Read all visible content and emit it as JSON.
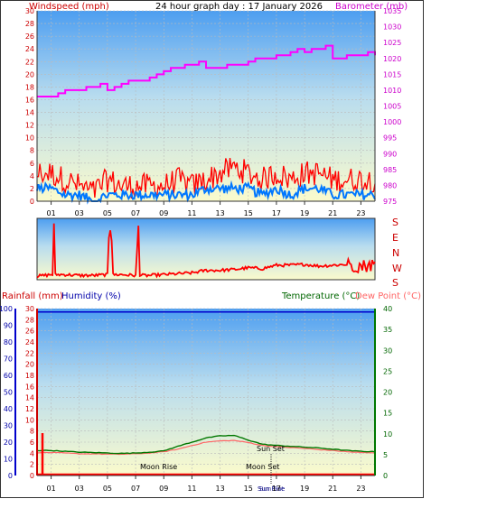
{
  "header": {
    "left": "Windspeed (mph)",
    "center": "24 hour graph day : 17 January 2026",
    "right": "Barometer (mb)"
  },
  "colors": {
    "wind_gust": "#ff0000",
    "wind_avg": "#0077ff",
    "barometer": "#ff00ff",
    "wind_dir": "#ff0000",
    "rain": "#ff0000",
    "humidity": "#0000cc",
    "temperature": "#007700",
    "dewpoint": "#ff6666",
    "grid": "#bbbbbb"
  },
  "x_ticks": [
    "01",
    "03",
    "05",
    "07",
    "09",
    "11",
    "13",
    "15",
    "17",
    "19",
    "21",
    "23"
  ],
  "chart_data": [
    {
      "type": "line",
      "name": "wind-barometer",
      "xlabel": "",
      "ylabel": "Windspeed (mph)",
      "ylabel_right": "Barometer (mb)",
      "ylim": [
        0,
        30
      ],
      "ylim_right": [
        975,
        1035
      ],
      "yticks": [
        0,
        2,
        4,
        6,
        8,
        10,
        12,
        14,
        16,
        18,
        20,
        22,
        24,
        26,
        28,
        30
      ],
      "yticks_right": [
        975,
        980,
        985,
        990,
        995,
        1000,
        1005,
        1010,
        1015,
        1020,
        1025,
        1030,
        1035
      ],
      "x_hours": [
        0,
        1,
        2,
        3,
        4,
        5,
        6,
        7,
        8,
        9,
        10,
        11,
        12,
        13,
        14,
        15,
        16,
        17,
        18,
        19,
        20,
        21,
        22,
        23,
        24
      ],
      "series": [
        {
          "name": "Barometer",
          "axis": "right",
          "values": [
            1008,
            1008,
            1010,
            1010,
            1011,
            1010,
            1012,
            1013,
            1014,
            1016,
            1017,
            1018,
            1017,
            1017,
            1018,
            1019,
            1020,
            1021,
            1022,
            1022,
            1023,
            1020,
            1021,
            1021,
            1021
          ]
        },
        {
          "name": "Gust",
          "axis": "left",
          "values": [
            4,
            4,
            3,
            2,
            1,
            3,
            2,
            2,
            2,
            2,
            3,
            2,
            3,
            4,
            5,
            4,
            3,
            4,
            3,
            4,
            4,
            3,
            3,
            3,
            3
          ]
        },
        {
          "name": "Average",
          "axis": "left",
          "values": [
            2,
            2,
            1,
            1,
            0,
            1,
            1,
            1,
            1,
            1,
            1,
            1,
            2,
            2,
            2,
            2,
            1,
            2,
            1,
            2,
            2,
            1,
            1,
            1,
            1
          ]
        }
      ]
    },
    {
      "type": "line",
      "name": "wind-direction",
      "ylabels": [
        "S",
        "E",
        "N",
        "W",
        "S"
      ],
      "ylim": [
        0,
        360
      ],
      "x_hours": [
        0,
        1,
        2,
        3,
        4,
        5,
        6,
        7,
        8,
        9,
        10,
        11,
        12,
        13,
        14,
        15,
        16,
        17,
        18,
        19,
        20,
        21,
        22,
        23,
        24
      ],
      "series": [
        {
          "name": "Direction",
          "values": [
            20,
            30,
            30,
            25,
            25,
            30,
            30,
            25,
            25,
            30,
            35,
            40,
            55,
            55,
            60,
            70,
            65,
            85,
            85,
            90,
            80,
            85,
            90,
            80,
            90
          ]
        }
      ]
    },
    {
      "type": "line",
      "name": "rain-humidity-temperature",
      "ylabel_left_outer": "Rainfall (mm)",
      "ylabel_left_inner": "Humidity (%)",
      "ylabel_right": "Temperature (°C)",
      "ylabel_right_2": "Dew Point (°C)",
      "humidity_ticks": [
        0,
        10,
        20,
        30,
        40,
        50,
        60,
        70,
        80,
        90,
        100
      ],
      "rain_ticks": [
        0,
        2,
        4,
        6,
        8,
        10,
        12,
        14,
        16,
        18,
        20,
        22,
        24,
        26,
        28,
        30
      ],
      "temp_ticks": [
        0,
        5,
        10,
        15,
        20,
        25,
        30,
        35,
        40
      ],
      "ylim_humidity": [
        0,
        100
      ],
      "ylim_rain": [
        0,
        30
      ],
      "ylim_temp": [
        0,
        40
      ],
      "annotations": [
        "Moon Rise",
        "Moon Set",
        "Sun Set",
        "Sun Rise"
      ],
      "x_hours": [
        0,
        1,
        2,
        3,
        4,
        5,
        6,
        7,
        8,
        9,
        10,
        11,
        12,
        13,
        14,
        15,
        16,
        17,
        18,
        19,
        20,
        21,
        22,
        23,
        24
      ],
      "series": [
        {
          "name": "Humidity",
          "axis": "humidity",
          "values": [
            98,
            98,
            98,
            98,
            98,
            98,
            98,
            98,
            98,
            98,
            98,
            98,
            98,
            98,
            98,
            98,
            98,
            98,
            98,
            98,
            98,
            98,
            98,
            98,
            98
          ]
        },
        {
          "name": "Temperature",
          "axis": "temp",
          "values": [
            6,
            6,
            5.8,
            5.6,
            5.5,
            5.4,
            5.3,
            5.4,
            5.6,
            5.9,
            7,
            8,
            9,
            9.5,
            9.6,
            8.5,
            7.5,
            7.2,
            7,
            6.8,
            6.6,
            6.3,
            6,
            5.8,
            5.7
          ]
        },
        {
          "name": "Dew Point",
          "axis": "temp",
          "values": [
            5.5,
            5.5,
            5.4,
            5.2,
            5.2,
            5.1,
            5.1,
            5.2,
            5.4,
            5.7,
            6.3,
            7.2,
            8,
            8.3,
            8.4,
            7.9,
            7.2,
            6.9,
            6.7,
            6.5,
            6.2,
            6,
            5.7,
            5.5,
            5.4
          ]
        },
        {
          "name": "Rainfall",
          "axis": "rain",
          "values": [
            0,
            0,
            0,
            0,
            0,
            0,
            0,
            0,
            0,
            0,
            0,
            0,
            0,
            0,
            0,
            0,
            0,
            0,
            0,
            0,
            0,
            0,
            0,
            0,
            0
          ]
        }
      ]
    }
  ]
}
